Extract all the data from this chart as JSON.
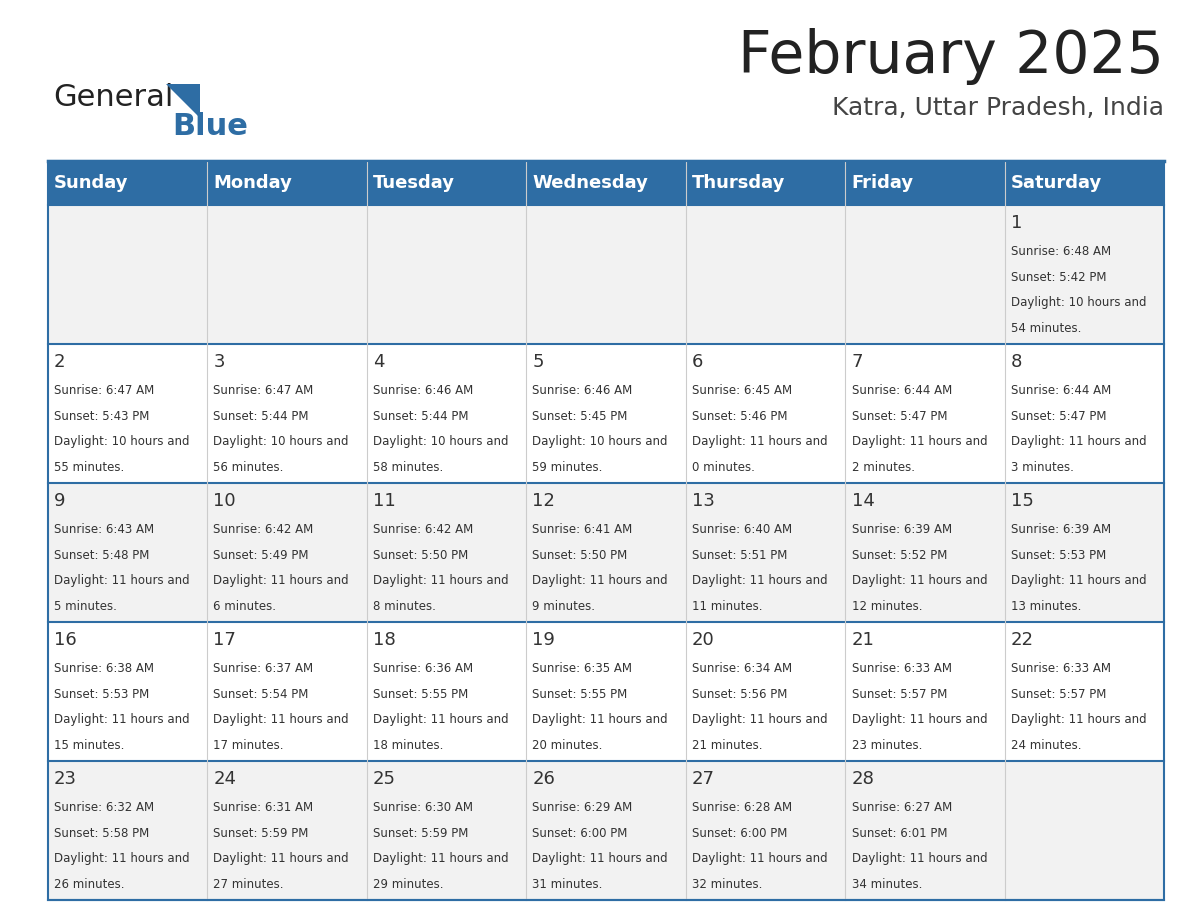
{
  "title": "February 2025",
  "subtitle": "Katra, Uttar Pradesh, India",
  "header_bg_color": "#2E6DA4",
  "header_text_color": "#FFFFFF",
  "header_days": [
    "Sunday",
    "Monday",
    "Tuesday",
    "Wednesday",
    "Thursday",
    "Friday",
    "Saturday"
  ],
  "row_bg_even": "#F2F2F2",
  "row_bg_odd": "#FFFFFF",
  "border_color": "#2E6DA4",
  "day_number_color": "#333333",
  "info_text_color": "#333333",
  "calendar_data": [
    [
      null,
      null,
      null,
      null,
      null,
      null,
      {
        "day": 1,
        "sunrise": "6:48 AM",
        "sunset": "5:42 PM",
        "daylight": "10 hours and 54 minutes."
      }
    ],
    [
      {
        "day": 2,
        "sunrise": "6:47 AM",
        "sunset": "5:43 PM",
        "daylight": "10 hours and 55 minutes."
      },
      {
        "day": 3,
        "sunrise": "6:47 AM",
        "sunset": "5:44 PM",
        "daylight": "10 hours and 56 minutes."
      },
      {
        "day": 4,
        "sunrise": "6:46 AM",
        "sunset": "5:44 PM",
        "daylight": "10 hours and 58 minutes."
      },
      {
        "day": 5,
        "sunrise": "6:46 AM",
        "sunset": "5:45 PM",
        "daylight": "10 hours and 59 minutes."
      },
      {
        "day": 6,
        "sunrise": "6:45 AM",
        "sunset": "5:46 PM",
        "daylight": "11 hours and 0 minutes."
      },
      {
        "day": 7,
        "sunrise": "6:44 AM",
        "sunset": "5:47 PM",
        "daylight": "11 hours and 2 minutes."
      },
      {
        "day": 8,
        "sunrise": "6:44 AM",
        "sunset": "5:47 PM",
        "daylight": "11 hours and 3 minutes."
      }
    ],
    [
      {
        "day": 9,
        "sunrise": "6:43 AM",
        "sunset": "5:48 PM",
        "daylight": "11 hours and 5 minutes."
      },
      {
        "day": 10,
        "sunrise": "6:42 AM",
        "sunset": "5:49 PM",
        "daylight": "11 hours and 6 minutes."
      },
      {
        "day": 11,
        "sunrise": "6:42 AM",
        "sunset": "5:50 PM",
        "daylight": "11 hours and 8 minutes."
      },
      {
        "day": 12,
        "sunrise": "6:41 AM",
        "sunset": "5:50 PM",
        "daylight": "11 hours and 9 minutes."
      },
      {
        "day": 13,
        "sunrise": "6:40 AM",
        "sunset": "5:51 PM",
        "daylight": "11 hours and 11 minutes."
      },
      {
        "day": 14,
        "sunrise": "6:39 AM",
        "sunset": "5:52 PM",
        "daylight": "11 hours and 12 minutes."
      },
      {
        "day": 15,
        "sunrise": "6:39 AM",
        "sunset": "5:53 PM",
        "daylight": "11 hours and 13 minutes."
      }
    ],
    [
      {
        "day": 16,
        "sunrise": "6:38 AM",
        "sunset": "5:53 PM",
        "daylight": "11 hours and 15 minutes."
      },
      {
        "day": 17,
        "sunrise": "6:37 AM",
        "sunset": "5:54 PM",
        "daylight": "11 hours and 17 minutes."
      },
      {
        "day": 18,
        "sunrise": "6:36 AM",
        "sunset": "5:55 PM",
        "daylight": "11 hours and 18 minutes."
      },
      {
        "day": 19,
        "sunrise": "6:35 AM",
        "sunset": "5:55 PM",
        "daylight": "11 hours and 20 minutes."
      },
      {
        "day": 20,
        "sunrise": "6:34 AM",
        "sunset": "5:56 PM",
        "daylight": "11 hours and 21 minutes."
      },
      {
        "day": 21,
        "sunrise": "6:33 AM",
        "sunset": "5:57 PM",
        "daylight": "11 hours and 23 minutes."
      },
      {
        "day": 22,
        "sunrise": "6:33 AM",
        "sunset": "5:57 PM",
        "daylight": "11 hours and 24 minutes."
      }
    ],
    [
      {
        "day": 23,
        "sunrise": "6:32 AM",
        "sunset": "5:58 PM",
        "daylight": "11 hours and 26 minutes."
      },
      {
        "day": 24,
        "sunrise": "6:31 AM",
        "sunset": "5:59 PM",
        "daylight": "11 hours and 27 minutes."
      },
      {
        "day": 25,
        "sunrise": "6:30 AM",
        "sunset": "5:59 PM",
        "daylight": "11 hours and 29 minutes."
      },
      {
        "day": 26,
        "sunrise": "6:29 AM",
        "sunset": "6:00 PM",
        "daylight": "11 hours and 31 minutes."
      },
      {
        "day": 27,
        "sunrise": "6:28 AM",
        "sunset": "6:00 PM",
        "daylight": "11 hours and 32 minutes."
      },
      {
        "day": 28,
        "sunrise": "6:27 AM",
        "sunset": "6:01 PM",
        "daylight": "11 hours and 34 minutes."
      },
      null
    ]
  ],
  "logo_text_general": "General",
  "logo_text_blue": "Blue",
  "logo_color_general": "#222222",
  "logo_color_blue": "#2E6DA4"
}
